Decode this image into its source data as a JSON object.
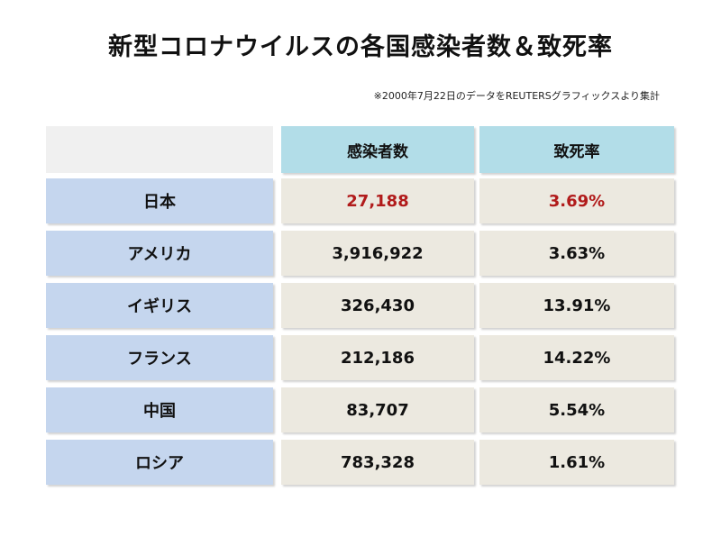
{
  "title": "新型コロナウイルスの各国感染者数＆致死率",
  "note": "※2000年7月22日のデータをREUTERSグラフィックスより集計",
  "table": {
    "headers": [
      "感染者数",
      "致死率"
    ],
    "rows": [
      {
        "country": "日本",
        "cases": "27,188",
        "fatality": "3.69%"
      },
      {
        "country": "アメリカ",
        "cases": "3,916,922",
        "fatality": "3.63%"
      },
      {
        "country": "イギリス",
        "cases": "326,430",
        "fatality": "13.91%"
      },
      {
        "country": "フランス",
        "cases": "212,186",
        "fatality": "14.22%"
      },
      {
        "country": "中国",
        "cases": "83,707",
        "fatality": "5.54%"
      },
      {
        "country": "ロシア",
        "cases": "783,328",
        "fatality": "1.61%"
      }
    ]
  },
  "colors": {
    "header_bg": "#b2dde8",
    "country_bg": "#c5d6ee",
    "data_bg": "#ece9e0",
    "blank_bg": "#f0f0f0",
    "highlight_text": "#b11b1b"
  }
}
